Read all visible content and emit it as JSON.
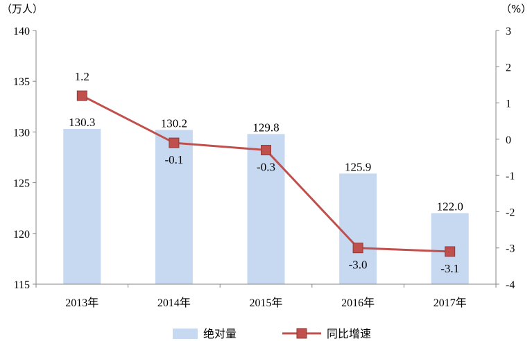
{
  "chart_data": {
    "type": "bar+line",
    "categories": [
      "2013年",
      "2014年",
      "2015年",
      "2016年",
      "2017年"
    ],
    "series": [
      {
        "name": "绝对量",
        "type": "bar",
        "axis": "left",
        "values": [
          130.3,
          130.2,
          129.8,
          125.9,
          122.0
        ],
        "labels": [
          "130.3",
          "130.2",
          "129.8",
          "125.9",
          "122.0"
        ],
        "color": "#c6d9f1"
      },
      {
        "name": "同比增速",
        "type": "line",
        "axis": "right",
        "values": [
          1.2,
          -0.1,
          -0.3,
          -3.0,
          -3.1
        ],
        "labels": [
          "1.2",
          "-0.1",
          "-0.3",
          "-3.0",
          "-3.1"
        ],
        "color": "#c0504d"
      }
    ],
    "y_left": {
      "unit": "（万人）",
      "range": [
        115,
        140
      ],
      "ticks": [
        "115",
        "120",
        "125",
        "130",
        "135",
        "140"
      ]
    },
    "y_right": {
      "unit": "（%）",
      "range": [
        -4,
        3
      ],
      "ticks": [
        "-4",
        "-3",
        "-2",
        "-1",
        "0",
        "1",
        "2",
        "3"
      ]
    },
    "legend_position": "bottom",
    "grid": false
  }
}
